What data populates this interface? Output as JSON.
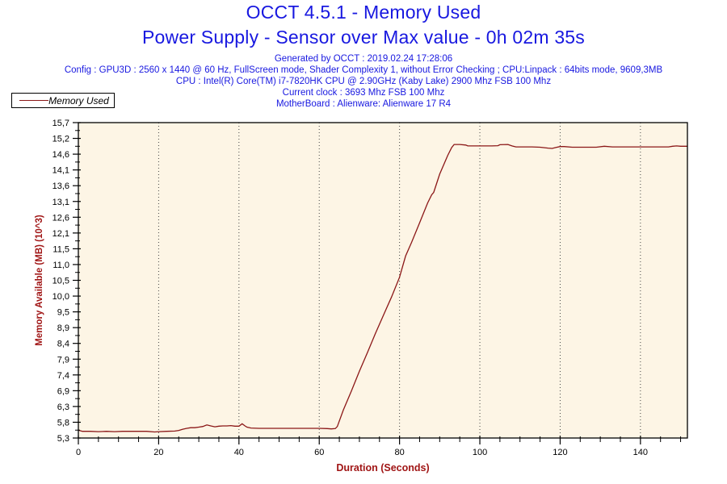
{
  "header": {
    "title_line1": "OCCT 4.5.1 - Memory Used",
    "title_line2": "Power Supply - Sensor over Max value - 0h 02m 35s",
    "info_lines": [
      "Generated by OCCT : 2019.02.24 17:28:06",
      "Config : GPU3D : 2560 x 1440 @ 60 Hz, FullScreen mode, Shader Complexity 1, without Error Checking ; CPU:Linpack : 64bits mode, 9609,3MB",
      "CPU : Intel(R) Core(TM) i7-7820HK CPU @ 2.90GHz (Kaby Lake) 2900 Mhz FSB 100 Mhz",
      "Current clock : 3693 Mhz FSB 100 Mhz",
      "MotherBoard : Alienware: Alienware 17 R4"
    ],
    "title_color": "#1818E0",
    "info_color": "#1818E0"
  },
  "legend": {
    "label": "Memory Used",
    "line_color": "#8B1717"
  },
  "chart_data": {
    "type": "line",
    "title": "OCCT 4.5.1 - Memory Used",
    "subtitle": "Power Supply - Sensor over Max value - 0h 02m 35s",
    "xlabel": "Duration (Seconds)",
    "ylabel": "Memory Available (MB) (10^3)",
    "xlim": [
      0,
      151.7
    ],
    "ylim": [
      5.3,
      15.7
    ],
    "x_major_ticks": [
      0,
      20,
      40,
      60,
      80,
      100,
      120,
      140
    ],
    "x_minor_step": 5,
    "y_major_step": 0.52,
    "y_tick_labels": [
      "5,3",
      "5,8",
      "6,3",
      "6,9",
      "7,4",
      "7,9",
      "8,4",
      "8,9",
      "9,5",
      "10,0",
      "10,5",
      "11,0",
      "11,5",
      "12,1",
      "12,6",
      "13,1",
      "13,6",
      "14,1",
      "14,6",
      "15,2",
      "15,7"
    ],
    "grid": "vertical-dotted",
    "grid_color": "#444444",
    "plot_bg": "#FDF5E5",
    "axis_color": "#000000",
    "axis_title_color": "#A01515",
    "tick_label_color": "#000000",
    "legend_position": "top-left",
    "series": [
      {
        "name": "Memory Used",
        "color": "#8B1717",
        "points": [
          [
            0,
            5.56
          ],
          [
            1,
            5.52
          ],
          [
            3,
            5.52
          ],
          [
            5,
            5.51
          ],
          [
            7,
            5.52
          ],
          [
            9,
            5.51
          ],
          [
            11,
            5.52
          ],
          [
            13,
            5.52
          ],
          [
            15,
            5.52
          ],
          [
            17,
            5.52
          ],
          [
            19,
            5.5
          ],
          [
            20,
            5.51
          ],
          [
            22,
            5.52
          ],
          [
            24,
            5.53
          ],
          [
            25,
            5.55
          ],
          [
            26,
            5.59
          ],
          [
            27,
            5.62
          ],
          [
            28,
            5.64
          ],
          [
            29,
            5.64
          ],
          [
            30,
            5.66
          ],
          [
            31,
            5.68
          ],
          [
            32,
            5.73
          ],
          [
            33,
            5.7
          ],
          [
            34,
            5.67
          ],
          [
            35,
            5.69
          ],
          [
            36,
            5.7
          ],
          [
            37,
            5.7
          ],
          [
            38,
            5.71
          ],
          [
            39,
            5.69
          ],
          [
            40,
            5.69
          ],
          [
            40.8,
            5.77
          ],
          [
            41.5,
            5.7
          ],
          [
            42,
            5.66
          ],
          [
            43,
            5.63
          ],
          [
            45,
            5.62
          ],
          [
            48,
            5.62
          ],
          [
            51,
            5.62
          ],
          [
            54,
            5.62
          ],
          [
            57,
            5.62
          ],
          [
            60,
            5.62
          ],
          [
            62,
            5.61
          ],
          [
            63,
            5.6
          ],
          [
            64,
            5.61
          ],
          [
            64.5,
            5.68
          ],
          [
            66,
            6.22
          ],
          [
            68,
            6.85
          ],
          [
            70,
            7.5
          ],
          [
            72,
            8.12
          ],
          [
            74,
            8.75
          ],
          [
            76,
            9.35
          ],
          [
            78,
            9.95
          ],
          [
            80,
            10.6
          ],
          [
            81.5,
            11.3
          ],
          [
            83,
            11.75
          ],
          [
            85,
            12.4
          ],
          [
            87,
            13.05
          ],
          [
            88,
            13.32
          ],
          [
            88.5,
            13.4
          ],
          [
            90,
            14.0
          ],
          [
            92,
            14.62
          ],
          [
            93,
            14.88
          ],
          [
            93.6,
            14.98
          ],
          [
            95,
            14.98
          ],
          [
            96.5,
            14.96
          ],
          [
            97,
            14.93
          ],
          [
            100,
            14.93
          ],
          [
            103,
            14.93
          ],
          [
            104.5,
            14.94
          ],
          [
            105,
            14.97
          ],
          [
            107,
            14.98
          ],
          [
            108,
            14.93
          ],
          [
            109,
            14.9
          ],
          [
            111,
            14.9
          ],
          [
            113,
            14.9
          ],
          [
            115,
            14.89
          ],
          [
            117,
            14.86
          ],
          [
            118,
            14.85
          ],
          [
            119,
            14.88
          ],
          [
            120,
            14.91
          ],
          [
            121,
            14.91
          ],
          [
            123,
            14.89
          ],
          [
            125,
            14.89
          ],
          [
            127,
            14.89
          ],
          [
            129,
            14.89
          ],
          [
            131,
            14.92
          ],
          [
            133,
            14.9
          ],
          [
            135,
            14.9
          ],
          [
            137,
            14.9
          ],
          [
            139,
            14.9
          ],
          [
            141,
            14.9
          ],
          [
            143,
            14.9
          ],
          [
            145,
            14.9
          ],
          [
            147,
            14.9
          ],
          [
            148,
            14.92
          ],
          [
            149,
            14.93
          ],
          [
            150,
            14.92
          ],
          [
            151.6,
            14.92
          ]
        ]
      }
    ]
  }
}
